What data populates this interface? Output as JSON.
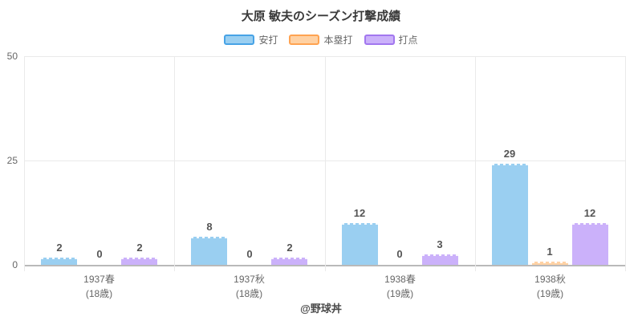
{
  "chart_data": {
    "type": "bar",
    "title": "大原 敏夫のシーズン打撃成績",
    "categories": [
      {
        "label": "1937春",
        "sublabel": "(18歳)"
      },
      {
        "label": "1937秋",
        "sublabel": "(18歳)"
      },
      {
        "label": "1938春",
        "sublabel": "(19歳)"
      },
      {
        "label": "1938秋",
        "sublabel": "(19歳)"
      }
    ],
    "series": [
      {
        "key": "hits",
        "name": "安打",
        "values": [
          2,
          8,
          12,
          29
        ],
        "fill": "#9ACFF1",
        "border": "#47A3E6"
      },
      {
        "key": "home-runs",
        "name": "本塁打",
        "values": [
          0,
          0,
          0,
          1
        ],
        "fill": "#FFD1A3",
        "border": "#FFA351"
      },
      {
        "key": "rbi",
        "name": "打点",
        "values": [
          2,
          2,
          3,
          12
        ],
        "fill": "#CBB1FA",
        "border": "#A277EF"
      }
    ],
    "yticks": [
      0,
      25,
      50
    ],
    "ylim": [
      0,
      60
    ],
    "value_labels": true,
    "legend_position": "top",
    "grid": true
  },
  "footer": {
    "credit": "@野球丼"
  }
}
